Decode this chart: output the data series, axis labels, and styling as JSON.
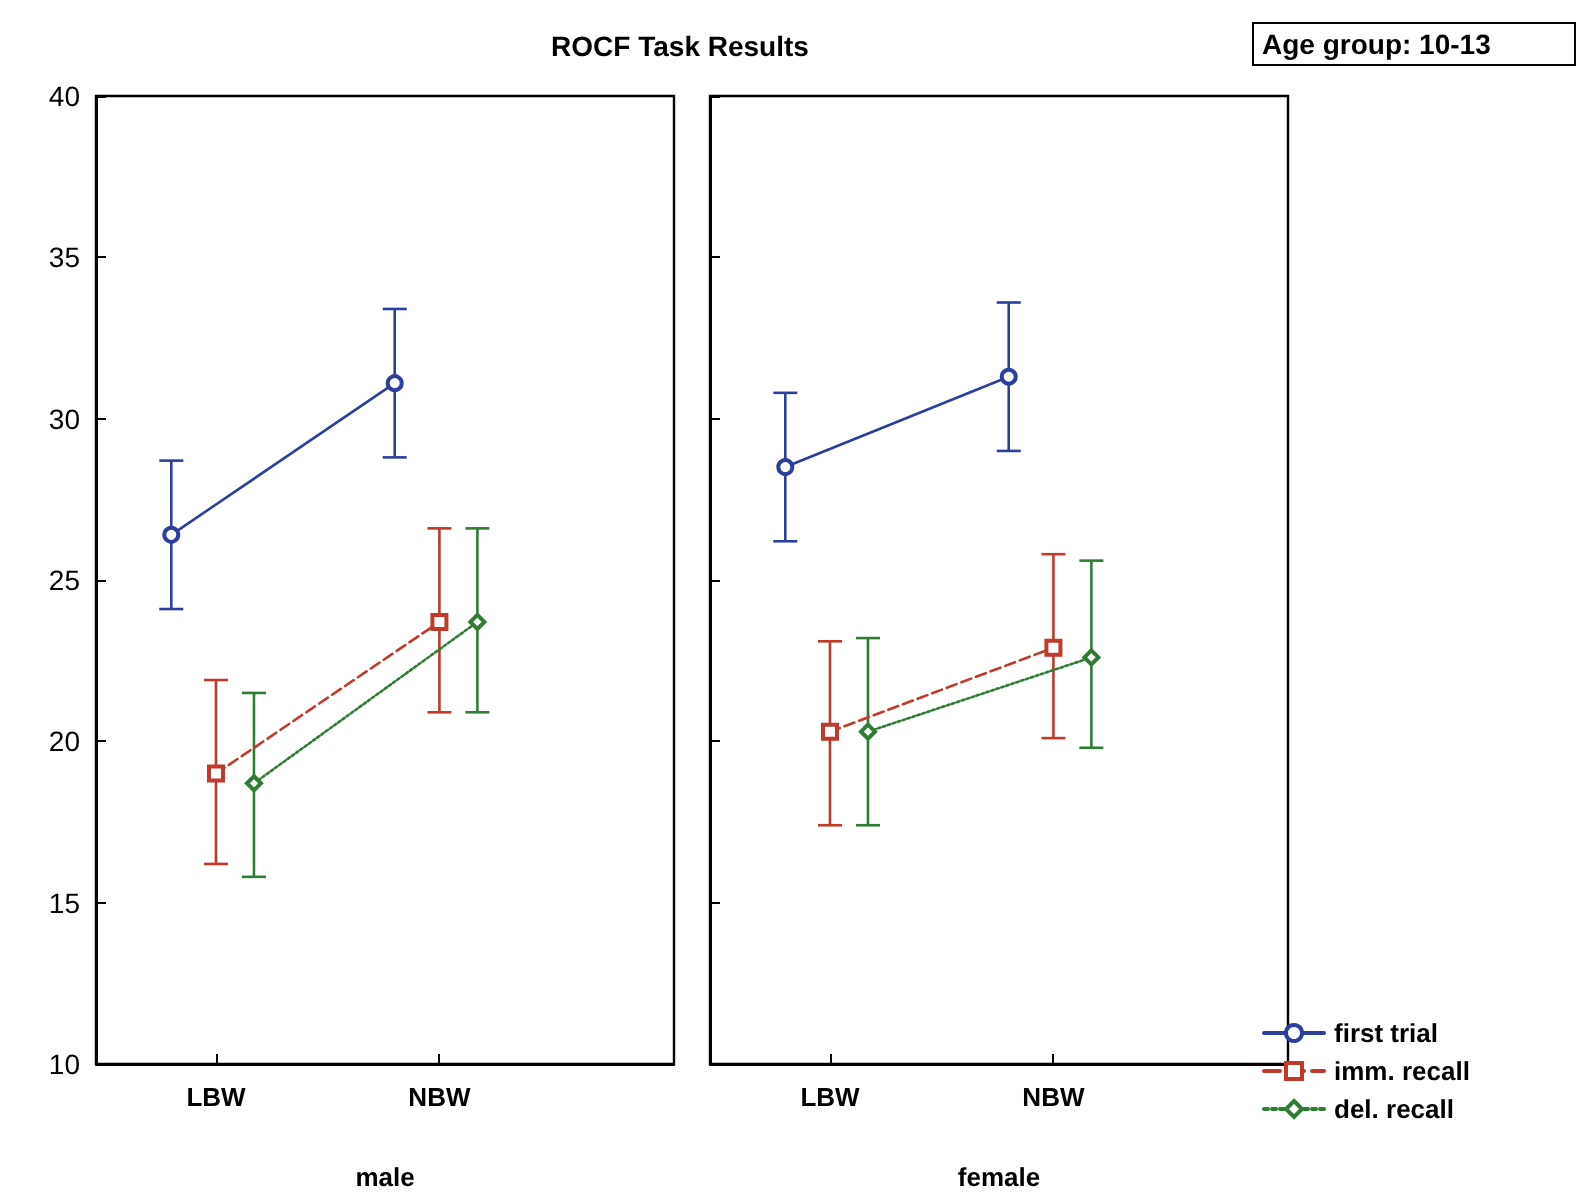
{
  "chart_data": [
    {
      "type": "line",
      "title": "ROCF Task Results",
      "xlabel": "male",
      "categories": [
        "LBW",
        "NBW"
      ],
      "ylim": [
        10,
        40
      ],
      "yticks": [
        10,
        15,
        20,
        25,
        30,
        35,
        40
      ],
      "series": [
        {
          "color": "#2b3f9e",
          "values": [
            26.4,
            31.1
          ],
          "errors": [
            [
              24.1,
              28.7
            ],
            [
              28.8,
              33.4
            ]
          ],
          "marker": "circle",
          "line_style": "solid"
        },
        {
          "color": "#c0392b",
          "values": [
            19.0,
            23.7
          ],
          "errors": [
            [
              16.2,
              21.9
            ],
            [
              20.9,
              26.6
            ]
          ],
          "marker": "square",
          "line_style": "dashed"
        },
        {
          "color": "#2e7d32",
          "values": [
            18.7,
            23.7
          ],
          "errors": [
            [
              15.8,
              21.5
            ],
            [
              20.9,
              26.6
            ]
          ],
          "marker": "diamond",
          "line_style": "dotted"
        }
      ]
    },
    {
      "type": "line",
      "xlabel": "female",
      "annotations": [
        "Age group: 10-13"
      ],
      "categories": [
        "LBW",
        "NBW"
      ],
      "ylim": [
        10,
        40
      ],
      "yticks": [
        10,
        15,
        20,
        25,
        30,
        35,
        40
      ],
      "tick_labels": "x",
      "legend": "bottom right",
      "series": [
        {
          "name": "first trial",
          "color": "#2b3f9e",
          "values": [
            28.5,
            31.3
          ],
          "errors": [
            [
              26.2,
              30.8
            ],
            [
              29.0,
              33.6
            ]
          ],
          "marker": "circle",
          "line_style": "solid"
        },
        {
          "name": "imm. recall",
          "color": "#c0392b",
          "values": [
            20.3,
            22.9
          ],
          "errors": [
            [
              17.4,
              23.1
            ],
            [
              20.1,
              25.8
            ]
          ],
          "marker": "square",
          "line_style": "dashed"
        },
        {
          "name": "del. recall",
          "color": "#2e7d32",
          "values": [
            20.3,
            22.6
          ],
          "errors": [
            [
              17.4,
              23.2
            ],
            [
              19.8,
              25.6
            ]
          ],
          "marker": "diamond",
          "line_style": "dotted"
        }
      ]
    }
  ]
}
